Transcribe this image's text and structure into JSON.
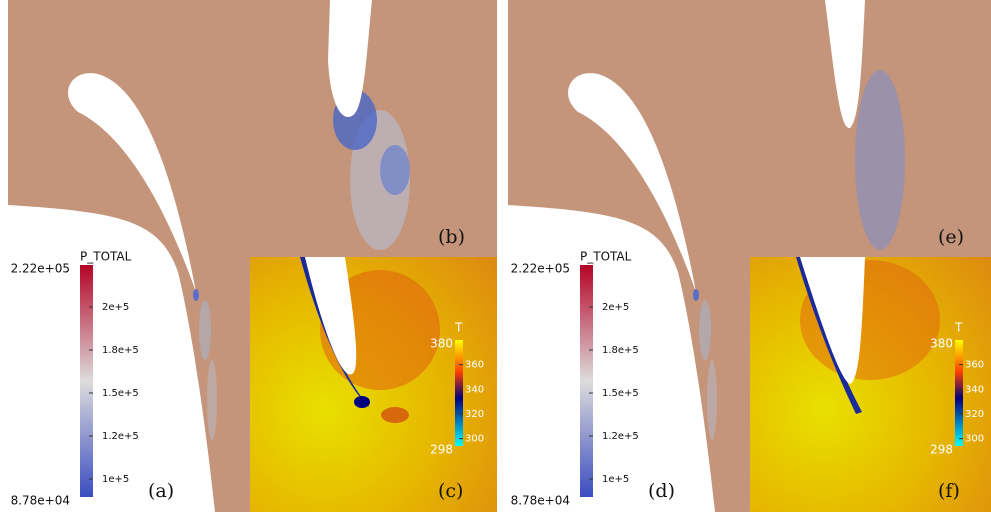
{
  "panels": [
    {
      "label": "(a)"
    },
    {
      "label": "(b)"
    },
    {
      "label": "(c)"
    },
    {
      "label": "(d)"
    },
    {
      "label": "(e)"
    },
    {
      "label": "(f)"
    }
  ],
  "colorbars": [
    {
      "title": "P_TOTAL",
      "max_label": "2.22e+05",
      "min_label": "8.78e+04",
      "ticks": [
        "2e+5",
        "1.8e+5",
        "1.5e+5",
        "1.2e+5",
        "1e+5"
      ]
    },
    {
      "title": "T",
      "max_label": "380",
      "min_label": "298",
      "ticks": [
        "360",
        "340",
        "320",
        "300"
      ]
    },
    {
      "title": "P_TOTAL",
      "max_label": "2.22e+05",
      "min_label": "8.78e+04",
      "ticks": [
        "2e+5",
        "1.8e+5",
        "1.5e+5",
        "1.2e+5",
        "1e+5"
      ]
    },
    {
      "title": "T",
      "max_label": "380",
      "min_label": "298",
      "ticks": [
        "360",
        "340",
        "320",
        "300"
      ]
    }
  ]
}
